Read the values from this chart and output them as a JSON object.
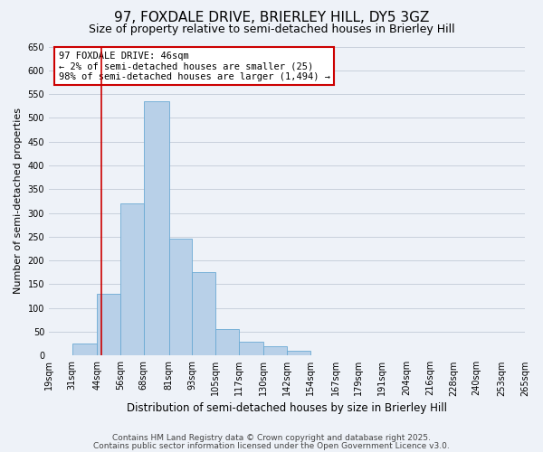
{
  "title": "97, FOXDALE DRIVE, BRIERLEY HILL, DY5 3GZ",
  "subtitle": "Size of property relative to semi-detached houses in Brierley Hill",
  "xlabel": "Distribution of semi-detached houses by size in Brierley Hill",
  "ylabel": "Number of semi-detached properties",
  "bar_left_edges": [
    19,
    31,
    44,
    56,
    68,
    81,
    93,
    105,
    117,
    130,
    142,
    154,
    167,
    179,
    191,
    204,
    216,
    228,
    240,
    253
  ],
  "bar_widths": [
    12,
    13,
    12,
    12,
    13,
    12,
    12,
    12,
    13,
    12,
    12,
    13,
    12,
    12,
    13,
    12,
    12,
    12,
    13,
    12
  ],
  "bar_heights": [
    0,
    25,
    130,
    320,
    535,
    245,
    175,
    55,
    30,
    20,
    10,
    0,
    0,
    0,
    0,
    0,
    0,
    0,
    0,
    0
  ],
  "tick_labels": [
    "19sqm",
    "31sqm",
    "44sqm",
    "56sqm",
    "68sqm",
    "81sqm",
    "93sqm",
    "105sqm",
    "117sqm",
    "130sqm",
    "142sqm",
    "154sqm",
    "167sqm",
    "179sqm",
    "191sqm",
    "204sqm",
    "216sqm",
    "228sqm",
    "240sqm",
    "253sqm",
    "265sqm"
  ],
  "tick_positions": [
    19,
    31,
    44,
    56,
    68,
    81,
    93,
    105,
    117,
    130,
    142,
    154,
    167,
    179,
    191,
    204,
    216,
    228,
    240,
    253,
    265
  ],
  "bar_color": "#b8d0e8",
  "bar_edge_color": "#6aaad4",
  "vline_x": 46,
  "vline_color": "#cc0000",
  "ylim": [
    0,
    650
  ],
  "yticks": [
    0,
    50,
    100,
    150,
    200,
    250,
    300,
    350,
    400,
    450,
    500,
    550,
    600,
    650
  ],
  "grid_color": "#c8d0dc",
  "bg_color": "#eef2f8",
  "annotation_title": "97 FOXDALE DRIVE: 46sqm",
  "annotation_line2": "← 2% of semi-detached houses are smaller (25)",
  "annotation_line3": "98% of semi-detached houses are larger (1,494) →",
  "annotation_box_color": "#ffffff",
  "annotation_box_edge": "#cc0000",
  "footer1": "Contains HM Land Registry data © Crown copyright and database right 2025.",
  "footer2": "Contains public sector information licensed under the Open Government Licence v3.0.",
  "title_fontsize": 11,
  "subtitle_fontsize": 9,
  "xlabel_fontsize": 8.5,
  "ylabel_fontsize": 8,
  "tick_fontsize": 7,
  "annotation_fontsize": 7.5,
  "footer_fontsize": 6.5
}
